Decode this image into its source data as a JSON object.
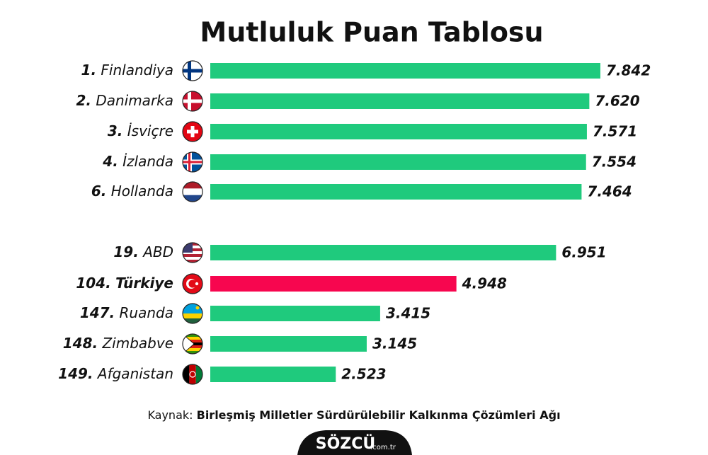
{
  "chart_data": {
    "type": "hbar",
    "title": "Mutluluk Puan Tablosu",
    "ranks": [
      "1.",
      "2.",
      "3.",
      "4.",
      "6.",
      "19.",
      "104.",
      "147.",
      "148.",
      "149."
    ],
    "categories": [
      "Finlandiya",
      "Danimarka",
      "İsviçre",
      "İzlanda",
      "Hollanda",
      "ABD",
      "Türkiye",
      "Ruanda",
      "Zimbabve",
      "Afganistan"
    ],
    "values": [
      7.842,
      7.62,
      7.571,
      7.554,
      7.464,
      6.951,
      4.948,
      3.415,
      3.145,
      2.523
    ],
    "value_labels": [
      "7.842",
      "7.620",
      "7.571",
      "7.554",
      "7.464",
      "6.951",
      "4.948",
      "3.415",
      "3.145",
      "2.523"
    ],
    "colors": [
      "#1fca7d",
      "#1fca7d",
      "#1fca7d",
      "#1fca7d",
      "#1fca7d",
      "#1fca7d",
      "#f7064f",
      "#1fca7d",
      "#1fca7d",
      "#1fca7d"
    ],
    "bold_labels": [
      false,
      false,
      false,
      false,
      false,
      false,
      true,
      false,
      false,
      false
    ],
    "source_prefix": "Kaynak:",
    "source": "Birleşmiş Milletler Sürdürülebilir Kalkınma Çözümleri Ağı",
    "logo": "SÖZCÜ",
    "logo_suffix": ".com.tr"
  }
}
